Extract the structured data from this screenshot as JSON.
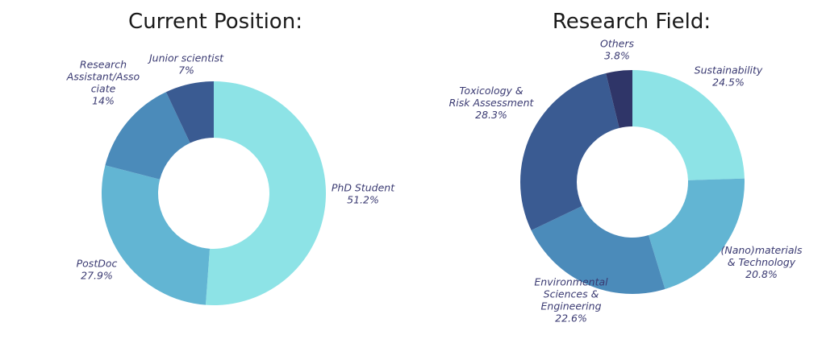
{
  "colors": {
    "c1": "#8de3e6",
    "c2": "#62b5d3",
    "c3": "#4b8bba",
    "c4": "#3a5b92",
    "c5": "#2f3568",
    "label": "#3a3a72"
  },
  "chart_data": [
    {
      "type": "pie",
      "title": "Current Position:",
      "donut": true,
      "slices": [
        {
          "label_lines": [
            "PhD Student",
            "51.2%"
          ],
          "value": 51.2,
          "color": "#8de3e6"
        },
        {
          "label_lines": [
            "PostDoc",
            "27.9%"
          ],
          "value": 27.9,
          "color": "#62b5d3"
        },
        {
          "label_lines": [
            "Research",
            "Assistant/Asso",
            "ciate",
            "14%"
          ],
          "value": 14,
          "color": "#4b8bba"
        },
        {
          "label_lines": [
            "Junior scientist",
            "7%"
          ],
          "value": 7,
          "color": "#3a5b92"
        }
      ]
    },
    {
      "type": "pie",
      "title": "Research Field:",
      "donut": true,
      "slices": [
        {
          "label_lines": [
            "Sustainability",
            "24.5%"
          ],
          "value": 24.5,
          "color": "#8de3e6"
        },
        {
          "label_lines": [
            "(Nano)materials",
            "& Technology",
            "20.8%"
          ],
          "value": 20.8,
          "color": "#62b5d3"
        },
        {
          "label_lines": [
            "Environmental",
            "Sciences &",
            "Engineering",
            "22.6%"
          ],
          "value": 22.6,
          "color": "#4b8bba"
        },
        {
          "label_lines": [
            "Toxicology &",
            "Risk Assessment",
            "28.3%"
          ],
          "value": 28.3,
          "color": "#3a5b92"
        },
        {
          "label_lines": [
            "Others",
            "3.8%"
          ],
          "value": 3.8,
          "color": "#2f3568"
        }
      ]
    }
  ]
}
